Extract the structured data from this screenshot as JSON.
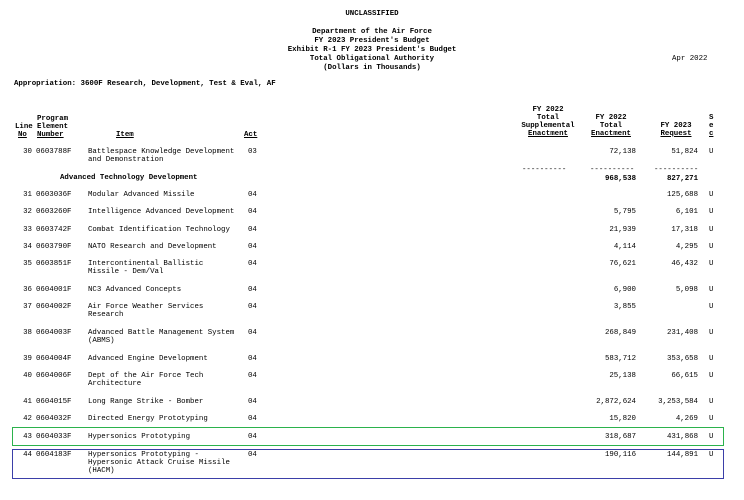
{
  "classification": "UNCLASSIFIED",
  "header_lines": [
    "Department of the Air Force",
    "FY 2023 President's Budget",
    "Exhibit R-1 FY 2023 President's Budget",
    "Total Obligational Authority",
    "(Dollars in Thousands)"
  ],
  "date": "Apr 2022",
  "appropriation": "Appropriation: 3600F Research, Development, Test & Eval, AF",
  "columns": {
    "line": [
      "Line",
      "No"
    ],
    "program": [
      "Program",
      "Element",
      "Number"
    ],
    "item": "Item",
    "act": "Act",
    "supp": [
      "FY 2022",
      "Total",
      "Supplemental",
      "Enactment"
    ],
    "fy2022": [
      "FY 2022",
      "Total",
      "Enactment"
    ],
    "fy2023": [
      "FY 2023",
      "Request"
    ],
    "sec": [
      "S",
      "e",
      "c"
    ]
  },
  "row30": {
    "no": "30",
    "pe": "0603788F",
    "item": [
      "Battlespace Knowledge Development",
      "and Demonstration"
    ],
    "act": "03",
    "fy2022": "72,138",
    "fy2023": "51,824",
    "sec": "U"
  },
  "subtotal": {
    "label": "Advanced Technology Development",
    "supp_dash": "----------",
    "fy2022_dash": "----------",
    "fy2023_dash": "----------",
    "fy2022": "968,538",
    "fy2023": "827,271"
  },
  "rows": [
    {
      "no": "31",
      "pe": "0603036F",
      "item": [
        "Modular Advanced Missile"
      ],
      "act": "04",
      "fy2022": "",
      "fy2023": "125,688",
      "sec": "U"
    },
    {
      "no": "32",
      "pe": "0603260F",
      "item": [
        "Intelligence Advanced Development"
      ],
      "act": "04",
      "fy2022": "5,795",
      "fy2023": "6,101",
      "sec": "U"
    },
    {
      "no": "33",
      "pe": "0603742F",
      "item": [
        "Combat Identification Technology"
      ],
      "act": "04",
      "fy2022": "21,939",
      "fy2023": "17,318",
      "sec": "U"
    },
    {
      "no": "34",
      "pe": "0603790F",
      "item": [
        "NATO Research and Development"
      ],
      "act": "04",
      "fy2022": "4,114",
      "fy2023": "4,295",
      "sec": "U"
    },
    {
      "no": "35",
      "pe": "0603851F",
      "item": [
        "Intercontinental Ballistic",
        "Missile - Dem/Val"
      ],
      "act": "04",
      "fy2022": "76,621",
      "fy2023": "46,432",
      "sec": "U"
    },
    {
      "no": "36",
      "pe": "0604001F",
      "item": [
        "NC3 Advanced Concepts"
      ],
      "act": "04",
      "fy2022": "6,900",
      "fy2023": "5,098",
      "sec": "U"
    },
    {
      "no": "37",
      "pe": "0604002F",
      "item": [
        "Air Force Weather Services",
        "Research"
      ],
      "act": "04",
      "fy2022": "3,855",
      "fy2023": "",
      "sec": "U"
    },
    {
      "no": "38",
      "pe": "0604003F",
      "item": [
        "Advanced Battle Management System",
        "(ABMS)"
      ],
      "act": "04",
      "fy2022": "268,849",
      "fy2023": "231,408",
      "sec": "U"
    },
    {
      "no": "39",
      "pe": "0604004F",
      "item": [
        "Advanced Engine Development"
      ],
      "act": "04",
      "fy2022": "583,712",
      "fy2023": "353,658",
      "sec": "U"
    },
    {
      "no": "40",
      "pe": "0604006F",
      "item": [
        "Dept of the Air Force Tech",
        "Architecture"
      ],
      "act": "04",
      "fy2022": "25,138",
      "fy2023": "66,615",
      "sec": "U"
    },
    {
      "no": "41",
      "pe": "0604015F",
      "item": [
        "Long Range Strike - Bomber"
      ],
      "act": "04",
      "fy2022": "2,872,624",
      "fy2023": "3,253,584",
      "sec": "U"
    },
    {
      "no": "42",
      "pe": "0604032F",
      "item": [
        "Directed Energy Prototyping"
      ],
      "act": "04",
      "fy2022": "15,820",
      "fy2023": "4,269",
      "sec": "U"
    },
    {
      "no": "43",
      "pe": "0604033F",
      "item": [
        "Hypersonics Prototyping"
      ],
      "act": "04",
      "fy2022": "318,687",
      "fy2023": "431,868",
      "sec": "U"
    },
    {
      "no": "44",
      "pe": "0604183F",
      "item": [
        "Hypersonics Prototyping -",
        "Hypersonic Attack Cruise Missile",
        "(HACM)"
      ],
      "act": "04",
      "fy2022": "190,116",
      "fy2023": "144,891",
      "sec": "U"
    }
  ],
  "highlights": {
    "green": "#2bb24c",
    "blue": "#3b3fa8"
  }
}
